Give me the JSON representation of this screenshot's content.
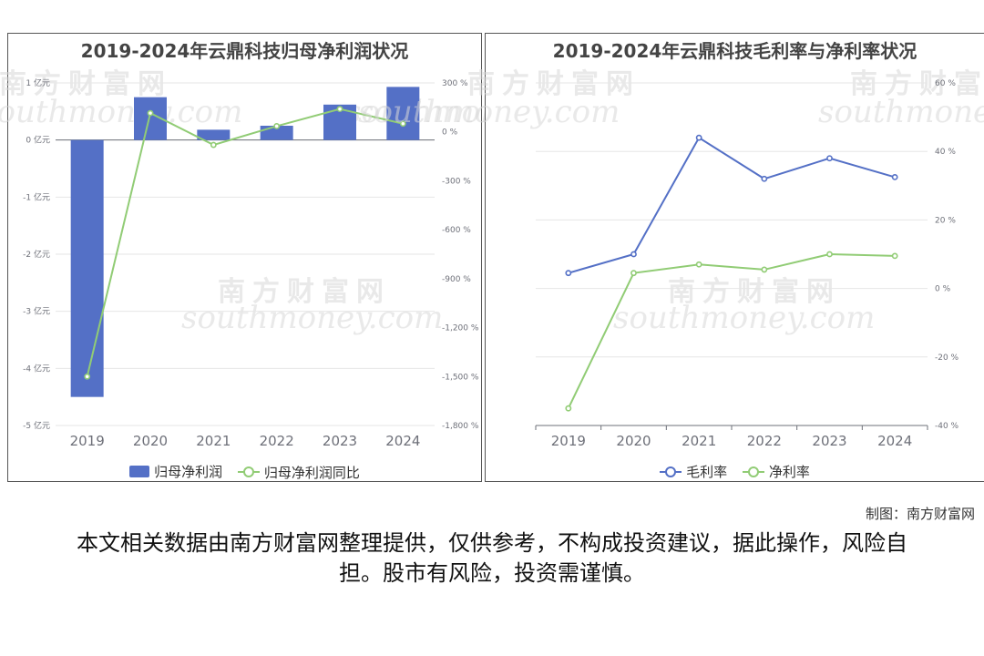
{
  "watermark": {
    "cn": "南方财富网",
    "en": "southmoney.com"
  },
  "chart_data": [
    {
      "type": "bar",
      "title": "2019-2024年云鼎科技归母净利润状况",
      "categories": [
        "2019",
        "2020",
        "2021",
        "2022",
        "2023",
        "2024"
      ],
      "y_left": {
        "min": -5,
        "max": 1,
        "step": 1,
        "ticks": [
          "1 亿元",
          "0 亿元",
          "-1 亿元",
          "-2 亿元",
          "-3 亿元",
          "-4 亿元",
          "-5 亿元"
        ]
      },
      "y_right": {
        "min": -1800,
        "max": 300,
        "step": 300,
        "ticks": [
          "300 %",
          "0 %",
          "-300 %",
          "-600 %",
          "-900 %",
          "-1,200 %",
          "-1,500 %",
          "-1,800 %"
        ]
      },
      "grid": true,
      "legend_position": "bottom",
      "series": [
        {
          "name": "归母净利润",
          "type": "bar",
          "axis": "left",
          "color": "#5470c6",
          "values": [
            -4.5,
            0.75,
            0.18,
            0.25,
            0.62,
            0.93
          ]
        },
        {
          "name": "归母净利润同比",
          "type": "line",
          "axis": "right",
          "color": "#91cc75",
          "values": [
            -1500,
            115,
            -80,
            35,
            140,
            50
          ]
        }
      ]
    },
    {
      "type": "line",
      "title": "2019-2024年云鼎科技毛利率与净利率状况",
      "categories": [
        "2019",
        "2020",
        "2021",
        "2022",
        "2023",
        "2024"
      ],
      "y_right": {
        "min": -40,
        "max": 60,
        "step": 20,
        "ticks": [
          "60 %",
          "40 %",
          "20 %",
          "0 %",
          "-20 %",
          "-40 %"
        ]
      },
      "grid": true,
      "legend_position": "bottom",
      "series": [
        {
          "name": "毛利率",
          "type": "line",
          "axis": "right",
          "color": "#5470c6",
          "values": [
            4.5,
            10,
            44,
            32,
            38,
            32.5
          ]
        },
        {
          "name": "净利率",
          "type": "line",
          "axis": "right",
          "color": "#91cc75",
          "values": [
            -35,
            4.5,
            7,
            5.5,
            10,
            9.5
          ]
        }
      ]
    }
  ],
  "footer": {
    "credit": "制图：南方财富网",
    "disclaimer": "本文相关数据由南方财富网整理提供，仅供参考，不构成投资建议，据此操作，风险自担。股市有风险，投资需谨慎。"
  }
}
